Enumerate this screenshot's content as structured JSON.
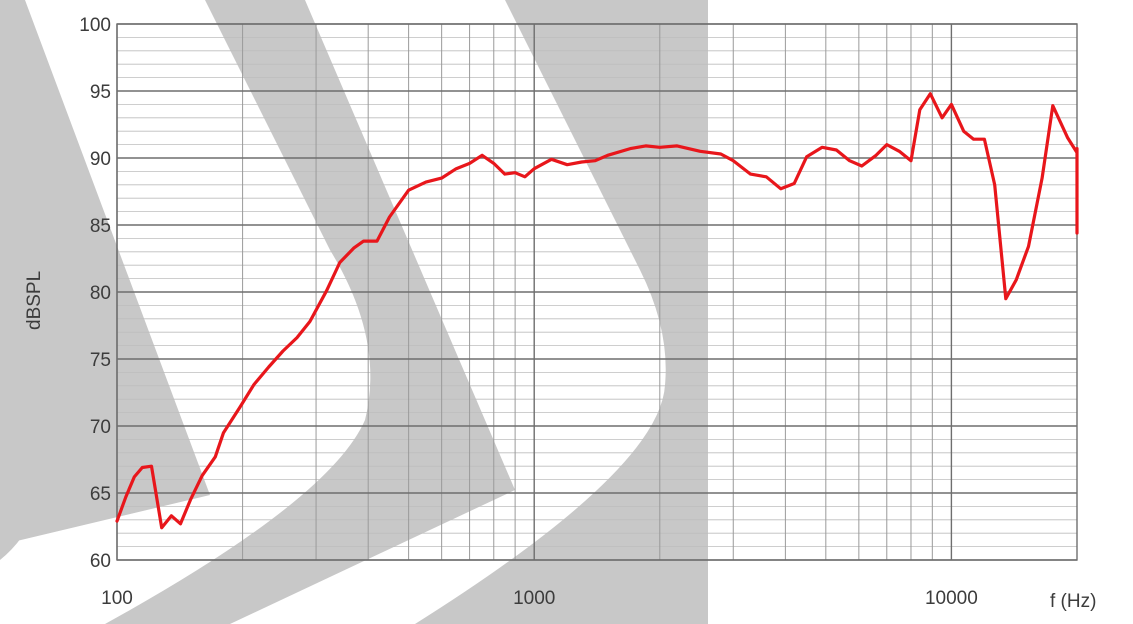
{
  "chart_data": {
    "type": "line",
    "title": "",
    "xlabel": "f (Hz)",
    "ylabel": "dBSPL",
    "xscale": "log",
    "xlim": [
      100,
      20000
    ],
    "ylim": [
      60,
      100
    ],
    "x_tick_labels": [
      "100",
      "1000",
      "10000"
    ],
    "y_tick_labels": [
      "60",
      "65",
      "70",
      "75",
      "80",
      "85",
      "90",
      "95",
      "100"
    ],
    "grid": true,
    "minor_grid": true,
    "legend": "none",
    "series": [
      {
        "color": "#e8161b",
        "points": [
          [
            100,
            62.9
          ],
          [
            105,
            64.7
          ],
          [
            110,
            66.2
          ],
          [
            115,
            66.9
          ],
          [
            121,
            67.0
          ],
          [
            128,
            62.4
          ],
          [
            135,
            63.3
          ],
          [
            142,
            62.7
          ],
          [
            150,
            64.5
          ],
          [
            160,
            66.3
          ],
          [
            172,
            67.7
          ],
          [
            180,
            69.5
          ],
          [
            197,
            71.4
          ],
          [
            213,
            73.1
          ],
          [
            231,
            74.4
          ],
          [
            250,
            75.6
          ],
          [
            270,
            76.6
          ],
          [
            290,
            77.8
          ],
          [
            318,
            80.1
          ],
          [
            342,
            82.2
          ],
          [
            370,
            83.3
          ],
          [
            390,
            83.8
          ],
          [
            420,
            83.8
          ],
          [
            450,
            85.6
          ],
          [
            500,
            87.6
          ],
          [
            550,
            88.2
          ],
          [
            600,
            88.5
          ],
          [
            650,
            89.2
          ],
          [
            700,
            89.6
          ],
          [
            750,
            90.2
          ],
          [
            800,
            89.6
          ],
          [
            850,
            88.8
          ],
          [
            900,
            88.9
          ],
          [
            950,
            88.6
          ],
          [
            1000,
            89.2
          ],
          [
            1100,
            89.9
          ],
          [
            1200,
            89.5
          ],
          [
            1300,
            89.7
          ],
          [
            1400,
            89.8
          ],
          [
            1500,
            90.2
          ],
          [
            1700,
            90.7
          ],
          [
            1850,
            90.9
          ],
          [
            2000,
            90.8
          ],
          [
            2200,
            90.9
          ],
          [
            2500,
            90.5
          ],
          [
            2800,
            90.3
          ],
          [
            3000,
            89.8
          ],
          [
            3300,
            88.8
          ],
          [
            3600,
            88.6
          ],
          [
            3900,
            87.7
          ],
          [
            4200,
            88.1
          ],
          [
            4500,
            90.1
          ],
          [
            4900,
            90.8
          ],
          [
            5300,
            90.6
          ],
          [
            5700,
            89.8
          ],
          [
            6100,
            89.4
          ],
          [
            6600,
            90.2
          ],
          [
            7000,
            91.0
          ],
          [
            7500,
            90.5
          ],
          [
            8000,
            89.8
          ],
          [
            8400,
            93.6
          ],
          [
            8900,
            94.8
          ],
          [
            9500,
            93.0
          ],
          [
            10000,
            94.0
          ],
          [
            10700,
            92.0
          ],
          [
            11300,
            91.4
          ],
          [
            12000,
            91.4
          ],
          [
            12700,
            88.0
          ],
          [
            13500,
            79.5
          ],
          [
            14300,
            80.9
          ],
          [
            15300,
            83.4
          ],
          [
            16500,
            88.5
          ],
          [
            17500,
            93.9
          ],
          [
            19000,
            91.5
          ],
          [
            20000,
            90.4
          ],
          [
            20800,
            90.7
          ],
          [
            21500,
            84.8
          ],
          [
            22500,
            84.4
          ]
        ]
      }
    ]
  }
}
